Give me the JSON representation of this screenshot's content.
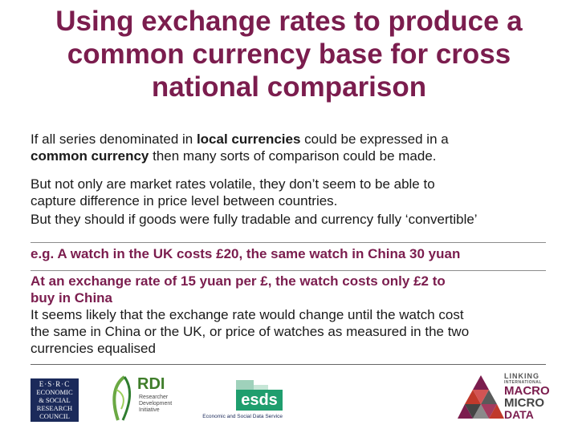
{
  "title": {
    "line1": "Using exchange rates to produce a",
    "line2": "common currency base for cross",
    "line3": "national comparison"
  },
  "paragraphs": {
    "p1": {
      "a": "If all series denominated in ",
      "b": "local currencies",
      "c": " could be expressed in a",
      "d": "common currency",
      "e": " then many sorts of comparison could be made."
    },
    "p2": {
      "l1": "But not only are market rates volatile, they don’t seem to be able to",
      "l2": "capture difference in price level between countries."
    },
    "p3": {
      "l1": "But they should if goods were fully tradable and currency fully ‘convertible’"
    },
    "p4": {
      "l1": "e.g. A watch in the UK costs £20, the same watch in China 30 yuan"
    },
    "p5": {
      "l1": "At an exchange rate of 15 yuan per £, the watch costs only £2 to",
      "l2": "buy in China",
      "l3": "It seems likely that the exchange rate would change until the watch cost",
      "l4": "the same in China or the UK, or price of watches as measured in the two",
      "l5": "currencies equalised"
    }
  },
  "logos": {
    "esrc": {
      "l1": "E·S·R·C",
      "l2": "ECONOMIC",
      "l3": "& SOCIAL",
      "l4": "RESEARCH",
      "l5": "COUNCIL"
    },
    "rdi": {
      "name": "RDI",
      "l1": "Researcher",
      "l2": "Development",
      "l3": "Initiative"
    },
    "esds": {
      "name": "esds",
      "caption": "Economic and Social Data Service"
    },
    "macro": {
      "l1": "LINKING",
      "l2": "INTERNATIONAL",
      "l3": "MACRO",
      "l4": "MICRO",
      "l5": "DATA"
    }
  },
  "colors": {
    "accent": "#7b1d4e",
    "esds_green": "#1f9e6e",
    "esrc_navy": "#1b2a5a"
  }
}
